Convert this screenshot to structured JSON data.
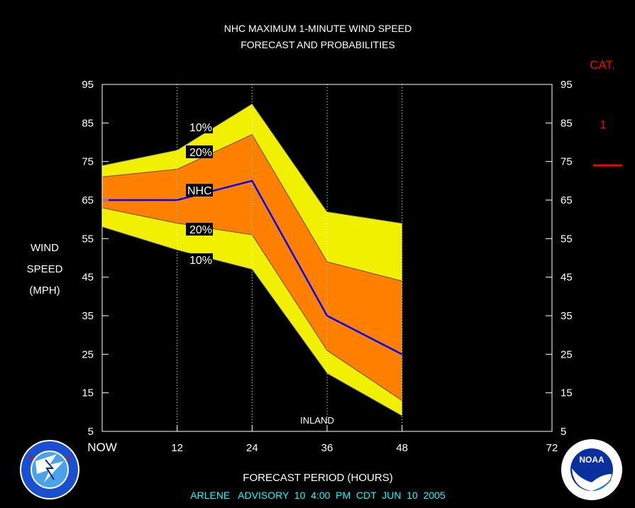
{
  "title_line1": "NHC MAXIMUM 1-MINUTE WIND SPEED",
  "title_line2": "FORECAST AND PROBABILITIES",
  "ylabel_lines": [
    "WIND",
    "SPEED",
    "(MPH)"
  ],
  "xlabel": "FORECAST PERIOD (HOURS)",
  "footer": "ARLENE   ADVISORY  10  4:00  PM  CDT  JUN  10  2005",
  "cat_header": "CAT.",
  "cat_value": "1",
  "cat_threshold_mph": 74,
  "inland_label": "INLAND",
  "band_labels": {
    "outer_upper": "10%",
    "inner_upper": "20%",
    "nhc": "NHC",
    "inner_lower": "20%",
    "outer_lower": "10%"
  },
  "colors": {
    "outer_band": "#f0f000",
    "inner_band": "#ff8000",
    "nhc_line": "#0000ff",
    "cat_color": "#ff0000",
    "footer_color": "#00ffff"
  },
  "logos": {
    "left": "nws-logo",
    "right": "noaa-logo"
  },
  "chart_data": {
    "type": "area",
    "xlim": [
      0,
      72
    ],
    "ylim": [
      5,
      95
    ],
    "x_ticks": [
      0,
      12,
      24,
      36,
      48,
      72
    ],
    "x_tick_labels": [
      "NOW",
      "12",
      "24",
      "36",
      "48",
      "72"
    ],
    "y_ticks": [
      5,
      15,
      25,
      35,
      45,
      55,
      65,
      75,
      85,
      95
    ],
    "y_tick_labels": [
      "5",
      "15",
      "25",
      "35",
      "45",
      "55",
      "65",
      "75",
      "85",
      "95"
    ],
    "x": [
      0,
      12,
      24,
      36,
      48
    ],
    "series": [
      {
        "name": "10%",
        "values": [
          74,
          78,
          90,
          62,
          59
        ]
      },
      {
        "name": "20%",
        "values": [
          71,
          73,
          82,
          49,
          44
        ]
      },
      {
        "name": "NHC",
        "values": [
          65,
          65,
          70,
          35,
          25
        ]
      },
      {
        "name": "20%",
        "values": [
          63,
          59,
          56,
          26,
          13
        ]
      },
      {
        "name": "10%",
        "values": [
          58,
          52,
          47,
          20,
          9
        ]
      }
    ]
  }
}
